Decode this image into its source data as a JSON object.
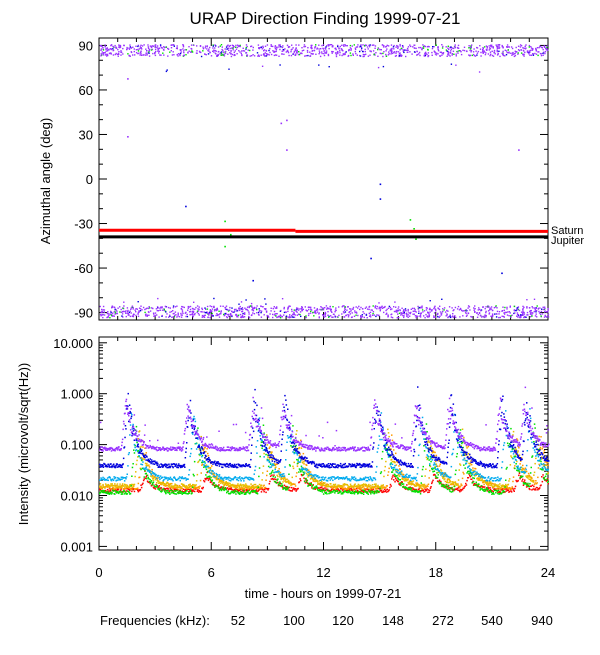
{
  "title": "URAP Direction Finding  1999-07-21",
  "colors": {
    "f52": "#ff0000",
    "f100": "#ff9900",
    "f120": "#e6bf00",
    "f148": "#00e000",
    "f272": "#00aaee",
    "f540": "#0000dd",
    "f940": "#9933ff",
    "saturn": "#ff0000",
    "jupiter": "#000000"
  },
  "chart_data": [
    {
      "type": "scatter",
      "ylabel": "Azimuthal angle (deg)",
      "xlim": [
        0,
        24
      ],
      "ylim": [
        -95,
        95
      ],
      "yticks": [
        "90",
        "60",
        "30",
        "0",
        "-30",
        "-60",
        "-90"
      ],
      "ytick_values": [
        90,
        60,
        30,
        0,
        -30,
        -60,
        -90
      ],
      "reference_lines": [
        {
          "name": "Saturn",
          "segments": [
            [
              0,
              10.5,
              -34.5
            ],
            [
              10.5,
              24,
              -35.3
            ]
          ],
          "color": "#ff0000"
        },
        {
          "name": "Jupiter",
          "segments": [
            [
              0,
              24,
              -39
            ]
          ],
          "color": "#000000"
        }
      ],
      "bands": [
        {
          "name": "940",
          "y_center": 87,
          "y_spread": 4
        },
        {
          "name": "940",
          "y_center": -89,
          "y_spread": 4
        }
      ],
      "outliers": [
        {
          "x": 1.5,
          "y": 29,
          "series": "940"
        },
        {
          "x": 1.5,
          "y": 68,
          "series": "940"
        },
        {
          "x": 4.6,
          "y": -18,
          "series": "540"
        },
        {
          "x": 6.7,
          "y": -28,
          "series": "148"
        },
        {
          "x": 6.7,
          "y": -45,
          "series": "148"
        },
        {
          "x": 7.0,
          "y": -37,
          "series": "148"
        },
        {
          "x": 8.2,
          "y": -68,
          "series": "540"
        },
        {
          "x": 9.7,
          "y": 38,
          "series": "940"
        },
        {
          "x": 10.0,
          "y": 40,
          "series": "940"
        },
        {
          "x": 10.0,
          "y": 20,
          "series": "940"
        },
        {
          "x": 14.5,
          "y": -53,
          "series": "540"
        },
        {
          "x": 15.0,
          "y": -3,
          "series": "540"
        },
        {
          "x": 15.0,
          "y": -13,
          "series": "540"
        },
        {
          "x": 16.6,
          "y": -27,
          "series": "148"
        },
        {
          "x": 16.8,
          "y": -33,
          "series": "148"
        },
        {
          "x": 16.9,
          "y": -40,
          "series": "148"
        },
        {
          "x": 21.5,
          "y": -63,
          "series": "540"
        },
        {
          "x": 22.4,
          "y": 20,
          "series": "940"
        }
      ]
    },
    {
      "type": "scatter",
      "ylabel": "Intensity (microvolt/sqrt(Hz))",
      "xlabel": "time - hours on 1999-07-21",
      "yscale": "log",
      "xlim": [
        0,
        24
      ],
      "ylim": [
        0.00085,
        13
      ],
      "xticks": [
        "0",
        "6",
        "12",
        "18",
        "24"
      ],
      "xtick_values": [
        0,
        6,
        12,
        18,
        24
      ],
      "yticks": [
        "10.000",
        "1.000",
        "0.100",
        "0.010",
        "0.001"
      ],
      "ytick_values": [
        10,
        1,
        0.1,
        0.01,
        0.001
      ],
      "peaks_hours": [
        1.5,
        4.8,
        8.3,
        9.9,
        14.8,
        17.0,
        18.8,
        21.5,
        22.8
      ],
      "series": [
        {
          "name": "52",
          "baseline": 0.013,
          "peak": 0.03
        },
        {
          "name": "100",
          "baseline": 0.015,
          "peak": 0.18
        },
        {
          "name": "120",
          "baseline": 0.016,
          "peak": 0.25
        },
        {
          "name": "148",
          "baseline": 0.012,
          "peak": 0.4
        },
        {
          "name": "272",
          "baseline": 0.022,
          "peak": 0.6
        },
        {
          "name": "540",
          "baseline": 0.04,
          "peak": 1.5
        },
        {
          "name": "940",
          "baseline": 0.085,
          "peak": 1.0
        }
      ]
    }
  ],
  "legend": {
    "label": "Frequencies (kHz):",
    "items": [
      "52",
      "100",
      "120",
      "148",
      "272",
      "540",
      "940"
    ]
  },
  "labels": {
    "saturn": "Saturn",
    "jupiter": "Jupiter"
  }
}
